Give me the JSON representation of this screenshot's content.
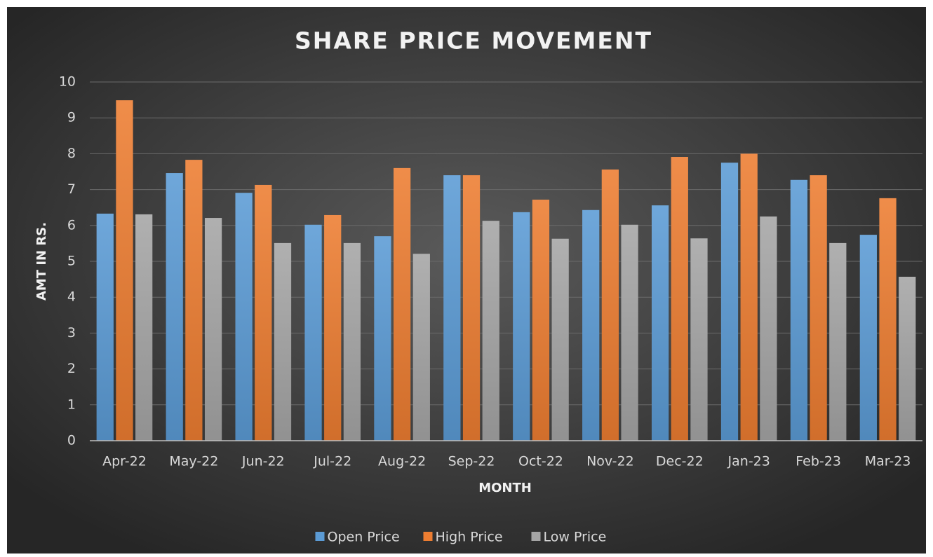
{
  "chart_data": {
    "type": "bar",
    "title": "SHARE PRICE MOVEMENT",
    "x_label": "MONTH",
    "y_label": "AMT IN RS.",
    "categories": [
      "Apr-22",
      "May-22",
      "Jun-22",
      "Jul-22",
      "Aug-22",
      "Sep-22",
      "Oct-22",
      "Nov-22",
      "Dec-22",
      "Jan-23",
      "Feb-23",
      "Mar-23"
    ],
    "series": [
      {
        "name": "Open Price",
        "color": "#5b9bd5",
        "values": [
          6.33,
          7.46,
          6.91,
          6.02,
          5.7,
          7.4,
          6.37,
          6.43,
          6.56,
          7.75,
          7.27,
          5.74
        ]
      },
      {
        "name": "High Price",
        "color": "#ed7d31",
        "values": [
          9.49,
          7.83,
          7.13,
          6.29,
          7.6,
          7.4,
          6.72,
          7.56,
          7.91,
          8.0,
          7.4,
          6.76
        ]
      },
      {
        "name": "Low Price",
        "color": "#a5a5a5",
        "values": [
          6.31,
          6.21,
          5.51,
          5.51,
          5.21,
          6.13,
          5.63,
          6.02,
          5.64,
          6.25,
          5.51,
          4.57
        ]
      }
    ],
    "ylim": [
      0,
      10
    ],
    "yticks": [
      0,
      1,
      2,
      3,
      4,
      5,
      6,
      7,
      8,
      9,
      10
    ],
    "grid": true,
    "legend": "bottom"
  }
}
